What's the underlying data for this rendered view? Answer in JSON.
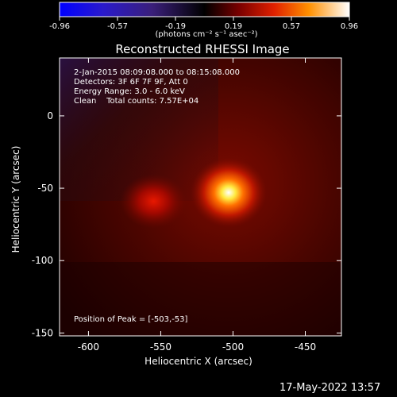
{
  "colorbar": {
    "ticks": [
      "-0.96",
      "-0.57",
      "-0.19",
      "0.19",
      "0.57",
      "0.96"
    ],
    "unit_label": "(photons cm⁻² s⁻¹ asec⁻²)",
    "colors": [
      "#0000ff",
      "#3a1f7a",
      "#000000",
      "#8a0000",
      "#ff4000",
      "#ffd000",
      "#ffffff"
    ]
  },
  "plot": {
    "title": "Reconstructed RHESSI Image",
    "info": {
      "time_range": "2-Jan-2015 08:09:08.000 to 08:15:08.000",
      "detectors": "Detectors: 3F 6F 7F 9F, Att 0",
      "energy": "Energy Range: 3.0 - 6.0 keV",
      "clean": "Clean    Total counts: 7.57E+04"
    },
    "peak_label": "Position of Peak = [-503,-53]",
    "xlabel": "Heliocentric X (arcsec)",
    "ylabel": "Heliocentric Y (arcsec)",
    "xticks": [
      "-600",
      "-550",
      "-500",
      "-450"
    ],
    "yticks": [
      "0",
      "-50",
      "-100",
      "-150"
    ]
  },
  "chart_data": {
    "type": "heatmap",
    "title": "Reconstructed RHESSI Image",
    "xlabel": "Heliocentric X (arcsec)",
    "ylabel": "Heliocentric Y (arcsec)",
    "x_ticks": [
      -600,
      -550,
      -500,
      -450
    ],
    "y_ticks": [
      0,
      -50,
      -100,
      -150
    ],
    "xlim": [
      -620,
      -425
    ],
    "ylim": [
      -152,
      40
    ],
    "colorbar_range": [
      -0.96,
      0.96
    ],
    "sources": [
      {
        "name": "",
        "x": -503,
        "y": -53,
        "relative_intensity": 1.0
      },
      {
        "name": "",
        "x": -555,
        "y": -59,
        "relative_intensity": 0.45
      }
    ],
    "peak": {
      "x": -503,
      "y": -53
    }
  },
  "footer": {
    "timestamp": "17-May-2022 13:57"
  }
}
